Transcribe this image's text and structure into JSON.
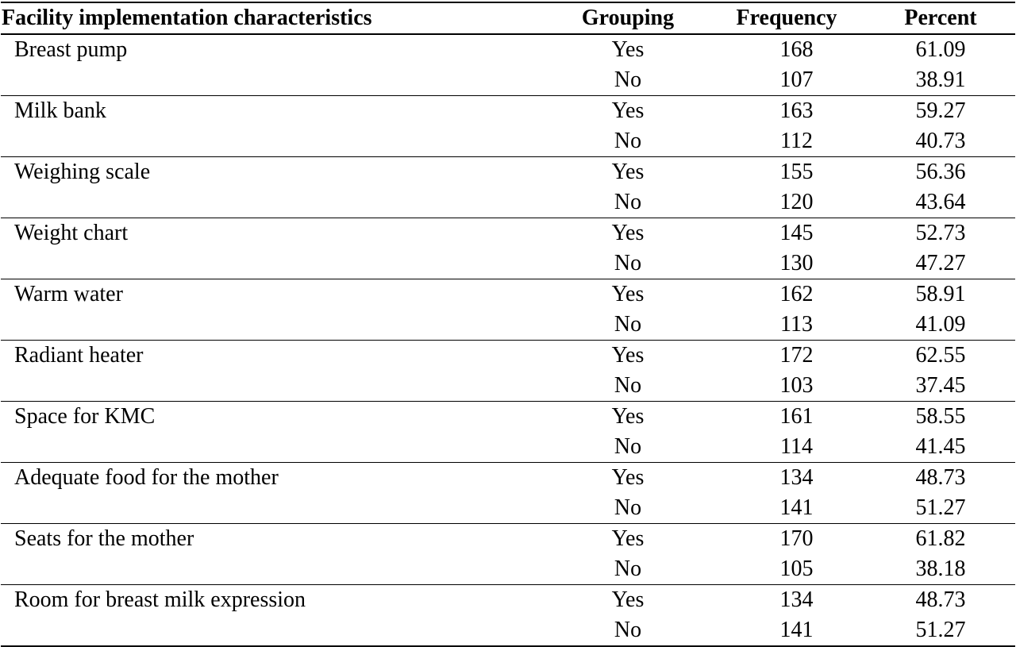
{
  "table": {
    "headers": [
      "Facility implementation characteristics",
      "Grouping",
      "Frequency",
      "Percent"
    ],
    "groups": [
      {
        "characteristic": "Breast pump",
        "rows": [
          {
            "grouping": "Yes",
            "frequency": "168",
            "percent": "61.09"
          },
          {
            "grouping": "No",
            "frequency": "107",
            "percent": "38.91"
          }
        ]
      },
      {
        "characteristic": "Milk bank",
        "rows": [
          {
            "grouping": "Yes",
            "frequency": "163",
            "percent": "59.27"
          },
          {
            "grouping": "No",
            "frequency": "112",
            "percent": "40.73"
          }
        ]
      },
      {
        "characteristic": "Weighing scale",
        "rows": [
          {
            "grouping": "Yes",
            "frequency": "155",
            "percent": "56.36"
          },
          {
            "grouping": "No",
            "frequency": "120",
            "percent": "43.64"
          }
        ]
      },
      {
        "characteristic": "Weight chart",
        "rows": [
          {
            "grouping": "Yes",
            "frequency": "145",
            "percent": "52.73"
          },
          {
            "grouping": "No",
            "frequency": "130",
            "percent": "47.27"
          }
        ]
      },
      {
        "characteristic": "Warm water",
        "rows": [
          {
            "grouping": "Yes",
            "frequency": "162",
            "percent": "58.91"
          },
          {
            "grouping": "No",
            "frequency": "113",
            "percent": "41.09"
          }
        ]
      },
      {
        "characteristic": "Radiant heater",
        "rows": [
          {
            "grouping": "Yes",
            "frequency": "172",
            "percent": "62.55"
          },
          {
            "grouping": "No",
            "frequency": "103",
            "percent": "37.45"
          }
        ]
      },
      {
        "characteristic": "Space for KMC",
        "rows": [
          {
            "grouping": "Yes",
            "frequency": "161",
            "percent": "58.55"
          },
          {
            "grouping": "No",
            "frequency": "114",
            "percent": "41.45"
          }
        ]
      },
      {
        "characteristic": "Adequate food for the mother",
        "rows": [
          {
            "grouping": "Yes",
            "frequency": "134",
            "percent": "48.73"
          },
          {
            "grouping": "No",
            "frequency": "141",
            "percent": "51.27"
          }
        ]
      },
      {
        "characteristic": "Seats for the mother",
        "rows": [
          {
            "grouping": "Yes",
            "frequency": "170",
            "percent": "61.82"
          },
          {
            "grouping": "No",
            "frequency": "105",
            "percent": "38.18"
          }
        ]
      },
      {
        "characteristic": "Room for breast milk expression",
        "rows": [
          {
            "grouping": "Yes",
            "frequency": "134",
            "percent": "48.73"
          },
          {
            "grouping": "No",
            "frequency": "141",
            "percent": "51.27"
          }
        ]
      }
    ]
  }
}
